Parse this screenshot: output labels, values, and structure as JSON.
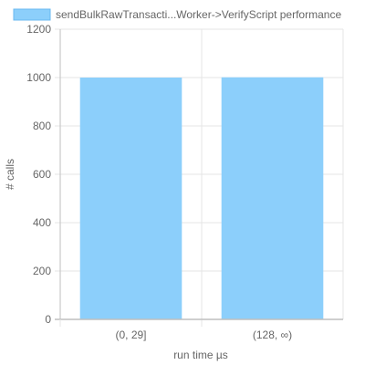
{
  "chart_data": {
    "type": "bar",
    "title": "",
    "categories": [
      "(0, 29]",
      "(128, ∞)"
    ],
    "series": [
      {
        "name": "sendBulkRawTransacti...Worker->VerifyScript performance",
        "values": [
          1000,
          1001
        ]
      }
    ],
    "xlabel": "run time µs",
    "ylabel": "# calls",
    "ylim": [
      0,
      1200
    ],
    "yticks": [
      0,
      200,
      400,
      600,
      800,
      1000,
      1200
    ],
    "grid": true,
    "legend_position": "top"
  },
  "colors": {
    "bar_fill": "#8ccffb",
    "bar_stroke": "#6ab8f0",
    "grid": "#e6e6e6",
    "axis": "#bfbfbf",
    "text": "#666666"
  }
}
